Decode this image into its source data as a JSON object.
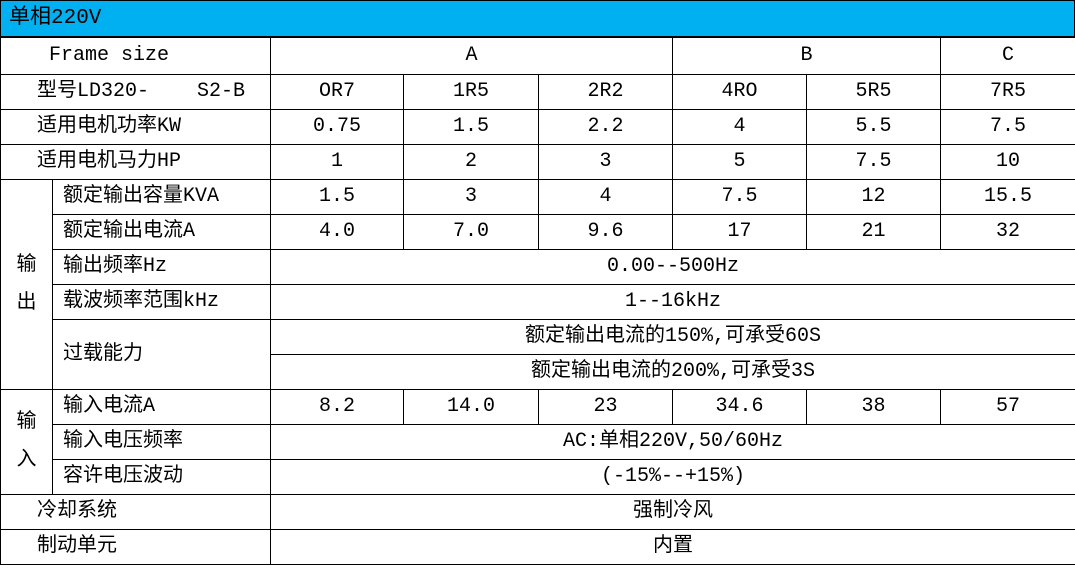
{
  "title": "单相220V",
  "frame_size": {
    "label": "Frame size",
    "groups": [
      "A",
      "B",
      "C"
    ]
  },
  "model": {
    "label": "型号LD320-    S2-B",
    "values": [
      "OR7",
      "1R5",
      "2R2",
      "4RO",
      "5R5",
      "7R5"
    ]
  },
  "motor_kw": {
    "label": "适用电机功率KW",
    "values": [
      "0.75",
      "1.5",
      "2.2",
      "4",
      "5.5",
      "7.5"
    ]
  },
  "motor_hp": {
    "label": "适用电机马力HP",
    "values": [
      "1",
      "2",
      "3",
      "5",
      "7.5",
      "10"
    ]
  },
  "output": {
    "group_label": [
      "输",
      "出"
    ],
    "kva": {
      "label": "额定输出容量KVA",
      "values": [
        "1.5",
        "3",
        "4",
        "7.5",
        "12",
        "15.5"
      ]
    },
    "current": {
      "label": "额定输出电流A",
      "values": [
        "4.0",
        "7.0",
        "9.6",
        "17",
        "21",
        "32"
      ]
    },
    "frequency": {
      "label": "输出频率Hz",
      "value": "0.00--500Hz"
    },
    "carrier": {
      "label": "载波频率范围kHz",
      "value": "1--16kHz"
    },
    "overload": {
      "label": "过载能力",
      "values": [
        "额定输出电流的150%,可承受60S",
        "额定输出电流的200%,可承受3S"
      ]
    }
  },
  "input": {
    "group_label": [
      "输",
      "入"
    ],
    "current": {
      "label": "输入电流A",
      "values": [
        "8.2",
        "14.0",
        "23",
        "34.6",
        "38",
        "57"
      ]
    },
    "voltage": {
      "label": "输入电压频率",
      "value": "AC:单相220V,50/60Hz"
    },
    "tolerance": {
      "label": "容许电压波动",
      "value": "(-15%--+15%)"
    }
  },
  "cooling": {
    "label": "冷却系统",
    "value": "强制冷风"
  },
  "braking": {
    "label": "制动单元",
    "value": "内置"
  }
}
